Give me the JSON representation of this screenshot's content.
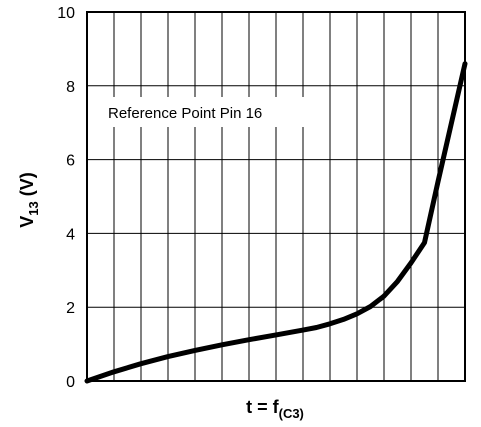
{
  "chart_data": {
    "type": "line",
    "xlabel": {
      "main": "t = f",
      "sub": "(C3)"
    },
    "ylabel": {
      "main": "V",
      "sub": "13",
      "rest": " (V)"
    },
    "ylim": [
      0,
      10
    ],
    "yticks": [
      "0",
      "2",
      "4",
      "6",
      "8",
      "10"
    ],
    "xlim": [
      0,
      14
    ],
    "x_grid_divisions": 14,
    "grid": true,
    "annotation": "Reference Point Pin 16",
    "series": [
      {
        "x": [
          0,
          1,
          2,
          3,
          4,
          5,
          6,
          7,
          8,
          8.5,
          9,
          9.5,
          10,
          10.5,
          11,
          11.5,
          12,
          12.5,
          13,
          13.5,
          14
        ],
        "y": [
          0,
          0.25,
          0.47,
          0.66,
          0.83,
          0.98,
          1.12,
          1.25,
          1.38,
          1.45,
          1.55,
          1.67,
          1.82,
          2.02,
          2.3,
          2.7,
          3.2,
          3.75,
          5.4,
          7.0,
          8.6
        ]
      }
    ]
  }
}
